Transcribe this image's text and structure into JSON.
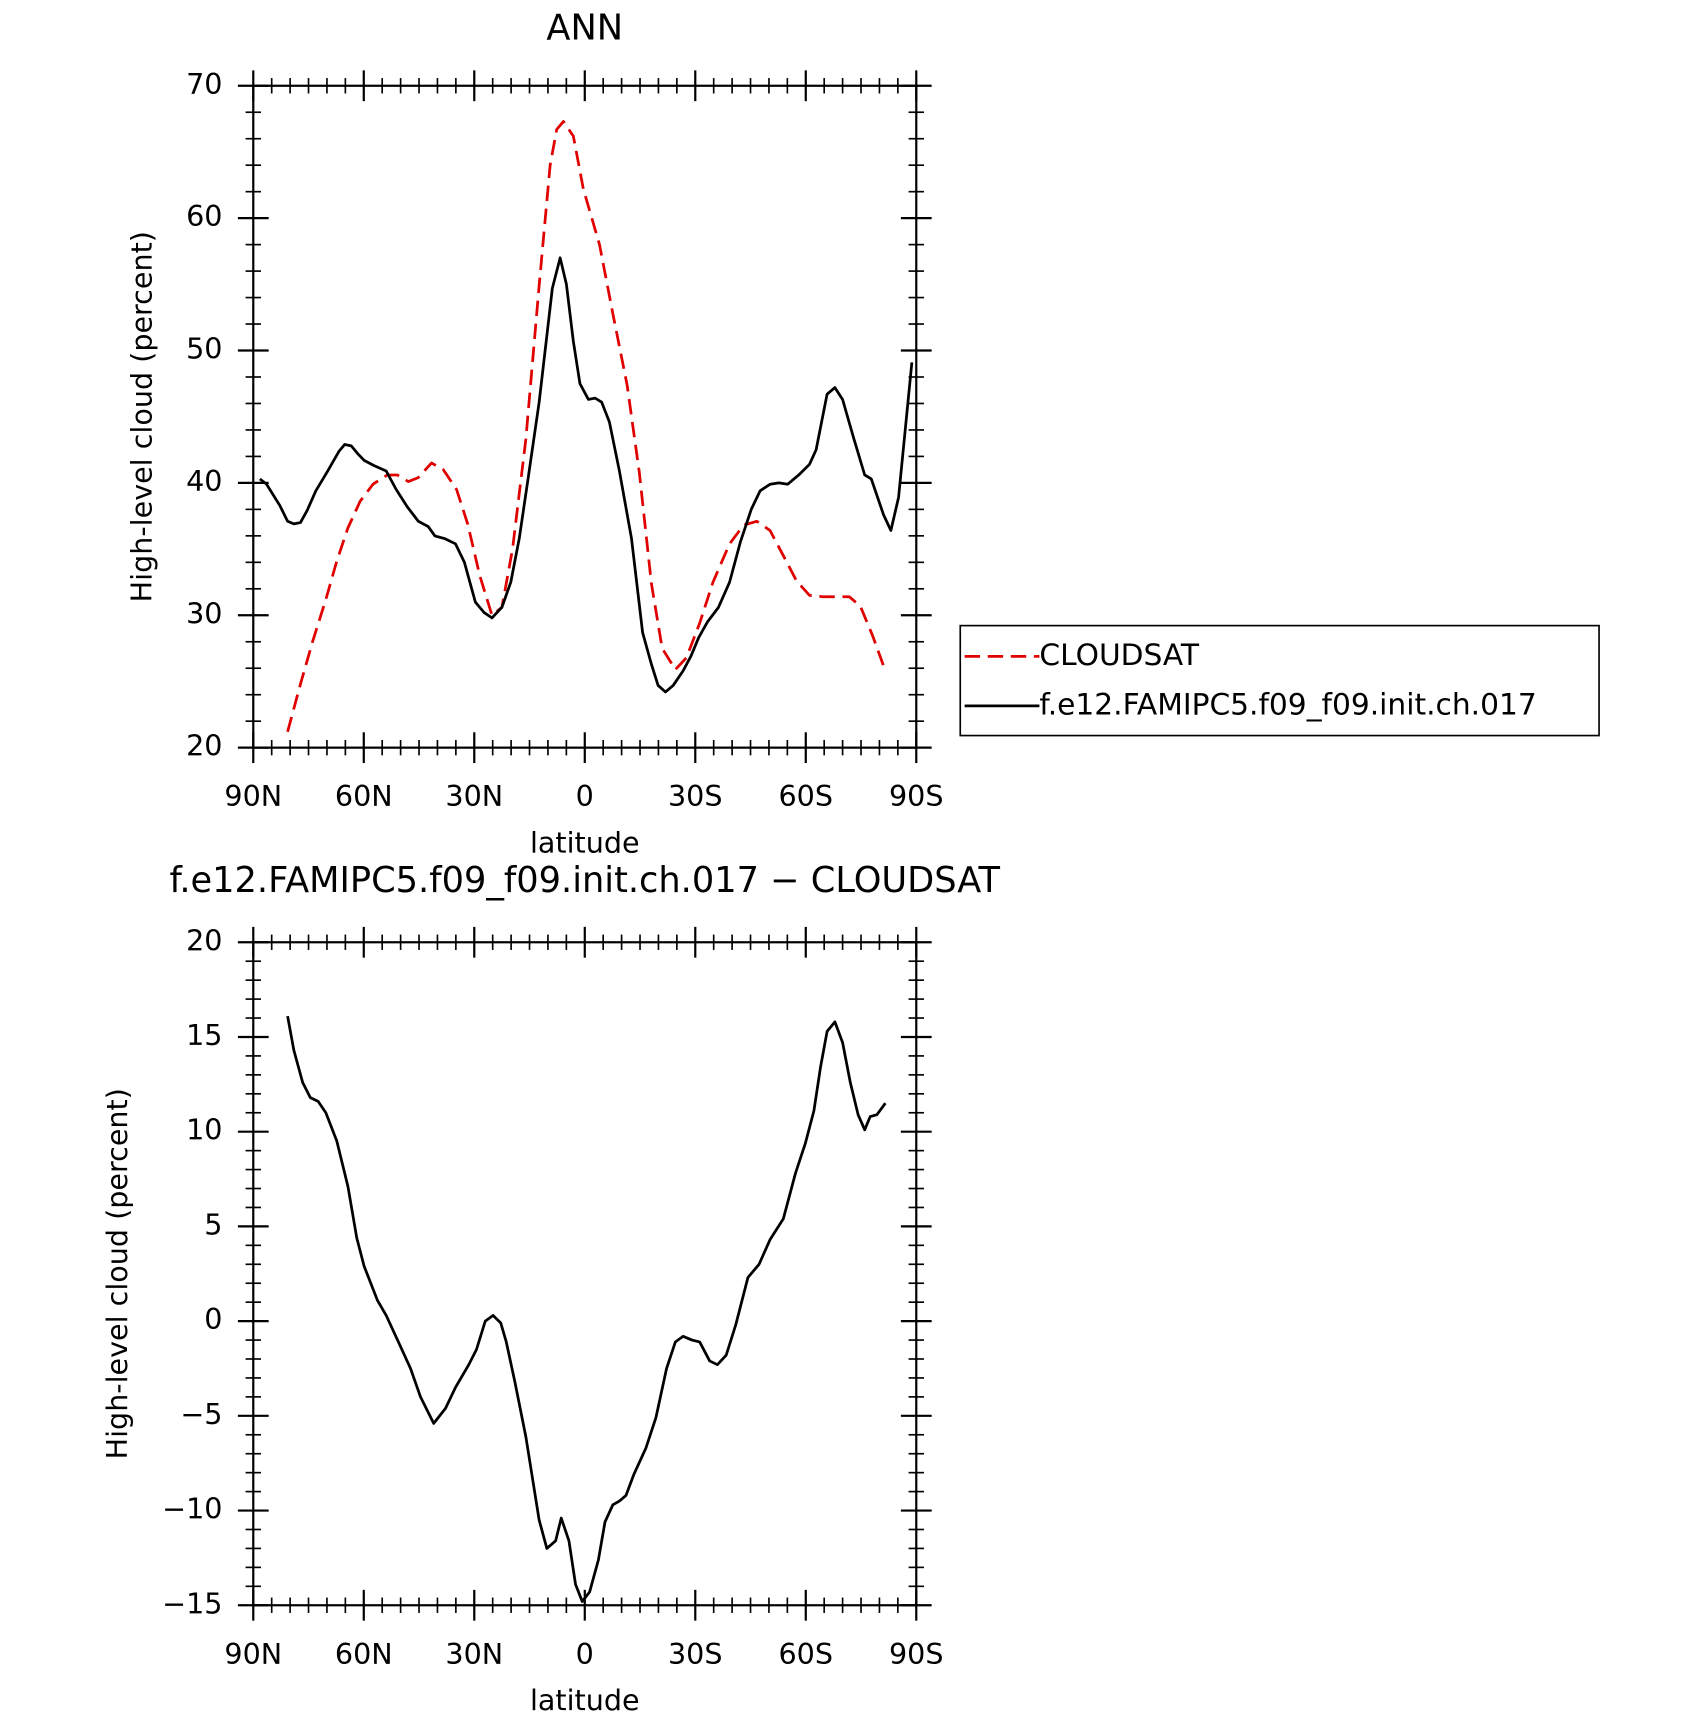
{
  "chart_data": [
    {
      "type": "line",
      "title": "ANN",
      "x_label": "latitude",
      "y_label": "High-level cloud (percent)",
      "xlim": [
        90,
        -90
      ],
      "ylim": [
        20,
        70
      ],
      "xticks": [
        {
          "value": 90,
          "label": "90N"
        },
        {
          "value": 60,
          "label": "60N"
        },
        {
          "value": 30,
          "label": "30N"
        },
        0,
        {
          "value": -30,
          "label": "30S"
        },
        {
          "value": -60,
          "label": "60S"
        },
        {
          "value": -90,
          "label": "90S"
        }
      ],
      "yticks": [
        20,
        30,
        40,
        50,
        60,
        70
      ],
      "legend": "right",
      "series": [
        {
          "name": "CLOUDSAT",
          "color": "#e00000",
          "line_style": "dashed",
          "x": [
            80.7,
            77.2,
            73.9,
            70.3,
            67.3,
            64.3,
            61,
            57.5,
            53.6,
            50.9,
            47.9,
            45.2,
            41.6,
            38.4,
            34.8,
            31.8,
            28.5,
            25.2,
            22.5,
            19.6,
            16,
            12.4,
            9.4,
            7.6,
            5.8,
            3.1,
            0.4,
            -4,
            -7.6,
            -11.5,
            -14.8,
            -18.1,
            -21,
            -24.6,
            -27.6,
            -31.2,
            -34.8,
            -39.3,
            -43.1,
            -46.7,
            -50.3,
            -53.9,
            -57.5,
            -61,
            -64.6,
            -68.2,
            -71.8,
            -74.8,
            -78.1,
            -81.6
          ],
          "values": [
            21.2,
            24.8,
            28,
            31.2,
            34.1,
            36.6,
            38.6,
            39.9,
            40.6,
            40.6,
            40.1,
            40.4,
            41.5,
            41,
            39.5,
            36.9,
            33,
            30,
            30.6,
            35,
            43.3,
            54.9,
            64,
            66.7,
            67.3,
            66.2,
            62.2,
            58,
            52.8,
            47.4,
            40.8,
            32.4,
            27.5,
            25.9,
            26.8,
            29.4,
            32.5,
            35.4,
            36.8,
            37.1,
            36.4,
            34.5,
            32.6,
            31.5,
            31.4,
            31.4,
            31.4,
            30.7,
            28.5,
            25.8
          ]
        },
        {
          "name": "f.e12.FAMIPC5.f09_f09.init.ch.017",
          "color": "#000000",
          "line_style": "solid",
          "x": [
            88.2,
            86.4,
            82.8,
            80.7,
            79,
            77.2,
            75.4,
            73,
            70,
            66.7,
            65.2,
            63.4,
            61.6,
            59.9,
            57.2,
            53.9,
            51.2,
            48.2,
            45.2,
            42.5,
            40.7,
            38.1,
            35.1,
            32.7,
            29.7,
            27.3,
            25.2,
            22.5,
            20.1,
            17.8,
            15.4,
            12.4,
            8.8,
            6.7,
            5,
            3.1,
            1.3,
            -1,
            -2.8,
            -4.6,
            -6.7,
            -9.4,
            -12.7,
            -15.7,
            -18.1,
            -19.9,
            -21.9,
            -24,
            -26.7,
            -28.8,
            -30.9,
            -33.3,
            -36.3,
            -39.3,
            -42.2,
            -45.2,
            -47.6,
            -50.3,
            -52.7,
            -55.1,
            -58.1,
            -61,
            -62.8,
            -65.8,
            -67.9,
            -70,
            -73,
            -76,
            -77.8,
            -81.1,
            -83.1,
            -85.2,
            -88.8
          ],
          "values": [
            40.3,
            39.9,
            38.3,
            37.1,
            36.9,
            37,
            37.9,
            39.4,
            40.8,
            42.4,
            42.9,
            42.8,
            42.2,
            41.7,
            41.3,
            40.9,
            39.5,
            38.2,
            37.1,
            36.7,
            36,
            35.8,
            35.4,
            34,
            31,
            30.2,
            29.8,
            30.6,
            32.5,
            35.8,
            40.3,
            46.1,
            54.7,
            57,
            55,
            50.7,
            47.5,
            46.3,
            46.4,
            46.1,
            44.6,
            40.9,
            35.8,
            28.7,
            26.3,
            24.7,
            24.2,
            24.7,
            25.8,
            26.9,
            28.3,
            29.5,
            30.6,
            32.5,
            35.5,
            38,
            39.4,
            39.9,
            40,
            39.9,
            40.6,
            41.4,
            42.5,
            46.7,
            47.2,
            46.3,
            43.4,
            40.6,
            40.3,
            37.6,
            36.4,
            38.9,
            49.1
          ]
        }
      ]
    },
    {
      "type": "line",
      "title": "f.e12.FAMIPC5.f09_f09.init.ch.017 − CLOUDSAT",
      "x_label": "latitude",
      "y_label": "High-level cloud (percent)",
      "xlim": [
        90,
        -90
      ],
      "ylim": [
        -15,
        20
      ],
      "xticks": [
        {
          "value": 90,
          "label": "90N"
        },
        {
          "value": 60,
          "label": "60N"
        },
        {
          "value": 30,
          "label": "30N"
        },
        0,
        {
          "value": -30,
          "label": "30S"
        },
        {
          "value": -60,
          "label": "60S"
        },
        {
          "value": -90,
          "label": "90S"
        }
      ],
      "yticks": [
        {
          "value": -15,
          "label": "−15"
        },
        {
          "value": -10,
          "label": "−10"
        },
        {
          "value": -5,
          "label": "−5"
        },
        0,
        5,
        10,
        15,
        20
      ],
      "series": [
        {
          "color": "#000000",
          "line_style": "solid",
          "x": [
            80.7,
            79,
            76.6,
            74.5,
            72.4,
            70.3,
            67.3,
            64.3,
            61.9,
            59.9,
            56.3,
            53.9,
            50.6,
            47.3,
            44.6,
            41,
            37.8,
            35.1,
            31.5,
            29.4,
            27,
            24.9,
            22.8,
            21.3,
            19,
            16,
            12.4,
            10.3,
            7.9,
            6.4,
            4.3,
            2.5,
            0.7,
            -1.3,
            -3.7,
            -5.5,
            -7.6,
            -9.4,
            -11.2,
            -13.3,
            -16.6,
            -19.3,
            -22.2,
            -24.6,
            -26.7,
            -29.1,
            -31.2,
            -33.9,
            -36,
            -38.4,
            -41,
            -44.3,
            -47.3,
            -50.3,
            -53.9,
            -57.2,
            -59.9,
            -62.2,
            -64,
            -65.8,
            -67.9,
            -70,
            -72.1,
            -74.2,
            -76,
            -77.5,
            -79.3,
            -81.6
          ],
          "values": [
            16.1,
            14.3,
            12.6,
            11.8,
            11.6,
            11,
            9.5,
            7.1,
            4.4,
            2.9,
            1.1,
            0.3,
            -1.1,
            -2.5,
            -4,
            -5.4,
            -4.6,
            -3.5,
            -2.3,
            -1.5,
            0,
            0.3,
            -0.1,
            -1.1,
            -3.2,
            -6.1,
            -10.5,
            -12,
            -11.6,
            -10.4,
            -11.6,
            -13.9,
            -14.8,
            -14.3,
            -12.6,
            -10.6,
            -9.7,
            -9.5,
            -9.2,
            -8.1,
            -6.7,
            -5.1,
            -2.5,
            -1.1,
            -0.8,
            -1,
            -1.1,
            -2.1,
            -2.3,
            -1.8,
            -0.2,
            2.3,
            3,
            4.3,
            5.4,
            7.8,
            9.4,
            11.1,
            13.4,
            15.3,
            15.8,
            14.7,
            12.6,
            10.9,
            10.1,
            10.8,
            10.9,
            11.5
          ]
        }
      ]
    }
  ]
}
